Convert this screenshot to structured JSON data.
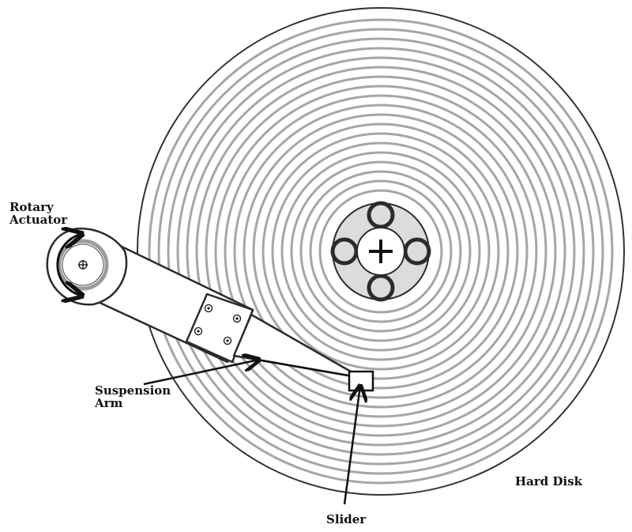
{
  "labels": {
    "rotary": "Rotary",
    "actuator": "Actuator",
    "suspension": "Suspension",
    "arm": "Arm",
    "slider": "Slider",
    "hard_disk": "Hard Disk"
  },
  "colors": {
    "track": "#a6a6a6",
    "hub_fill": "#dcdcdc",
    "outline": "#2b2b2b",
    "ink": "#111111"
  },
  "icons": {
    "spindle": "plus-icon",
    "pivot": "crosshair-circle-icon"
  }
}
